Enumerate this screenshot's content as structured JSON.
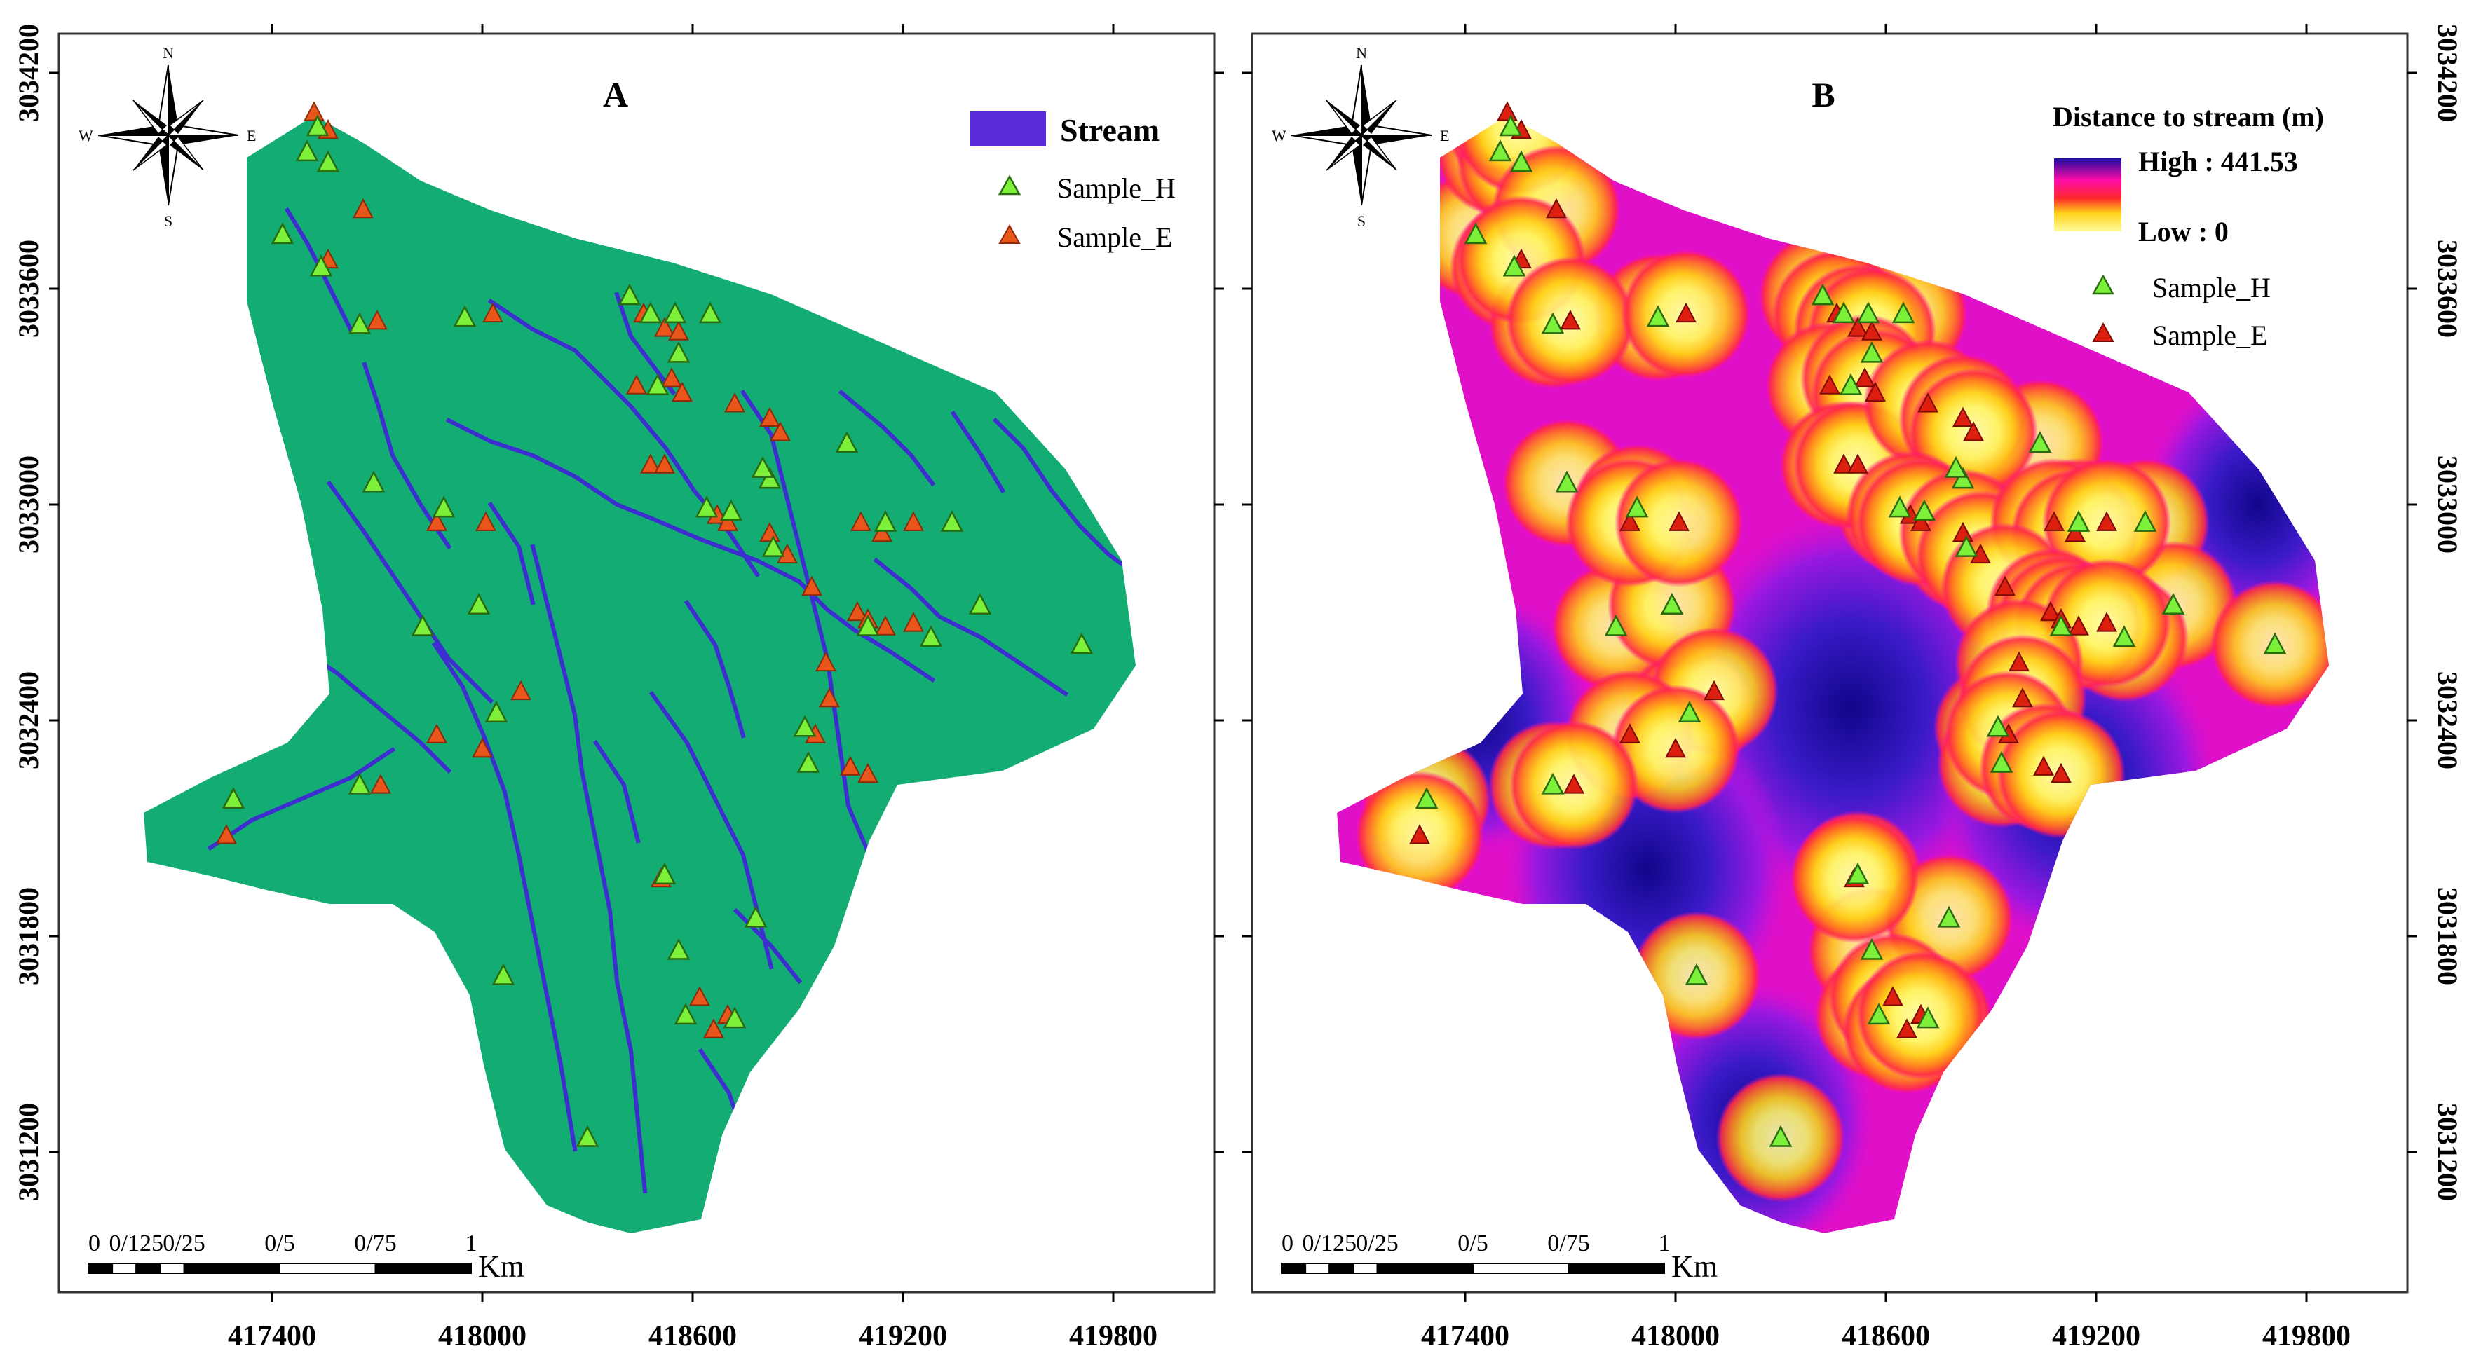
{
  "panels": [
    {
      "id": "A",
      "label": "A",
      "x_ticks": [
        "417400",
        "418000",
        "418600",
        "419200",
        "419800"
      ],
      "y_ticks": [
        "3034200",
        "3033600",
        "3033000",
        "3032400",
        "3031800",
        "3031200"
      ],
      "legend": [
        {
          "kind": "stream",
          "label": "Stream"
        },
        {
          "kind": "sample_h",
          "label": "Sample_H"
        },
        {
          "kind": "sample_e",
          "label": "Sample_E"
        }
      ],
      "scale_bar": {
        "ticks": [
          "0",
          "0/125",
          "0/25",
          "0/5",
          "0/75",
          "1"
        ],
        "unit": "Km"
      },
      "north_arrow": {
        "n": "N",
        "s": "S",
        "e": "E",
        "w": "W"
      }
    },
    {
      "id": "B",
      "label": "B",
      "x_ticks": [
        "417400",
        "418000",
        "418600",
        "419200",
        "419800"
      ],
      "y_ticks": [
        "3034200",
        "3033600",
        "3033000",
        "3032400",
        "3031800",
        "3031200"
      ],
      "legend_title": "Distance to stream (m)",
      "legend_high": "High : 441.53",
      "legend_low": "Low : 0",
      "legend": [
        {
          "kind": "sample_h",
          "label": "Sample_H"
        },
        {
          "kind": "sample_e",
          "label": "Sample_E"
        }
      ],
      "scale_bar": {
        "ticks": [
          "0",
          "0/125",
          "0/25",
          "0/5",
          "0/75",
          "1"
        ],
        "unit": "Km"
      },
      "north_arrow": {
        "n": "N",
        "s": "S",
        "e": "E",
        "w": "W"
      }
    }
  ],
  "colors": {
    "catchment": "#13ad74",
    "stream": "#3d2fcf",
    "stream_legend": "#5a2bd8",
    "sample_h": "#7df03a",
    "sample_e_a": "#e8561b",
    "sample_e_b": "#dd1f10",
    "dist_low": "#fffa9a",
    "dist_mid1": "#ffd21a",
    "dist_mid2": "#ff2a2a",
    "dist_mid3": "#ff0aa8",
    "dist_high": "#1a0ba0"
  },
  "sample_points": {
    "sample_h": [
      {
        "x": 417430,
        "y": 3033750
      },
      {
        "x": 417500,
        "y": 3033980
      },
      {
        "x": 417530,
        "y": 3034050
      },
      {
        "x": 417560,
        "y": 3033950
      },
      {
        "x": 417540,
        "y": 3033660
      },
      {
        "x": 417650,
        "y": 3033500
      },
      {
        "x": 417690,
        "y": 3033060
      },
      {
        "x": 417890,
        "y": 3032990
      },
      {
        "x": 417950,
        "y": 3033520
      },
      {
        "x": 418420,
        "y": 3033580
      },
      {
        "x": 418480,
        "y": 3033530
      },
      {
        "x": 418500,
        "y": 3033330
      },
      {
        "x": 418560,
        "y": 3033420
      },
      {
        "x": 418550,
        "y": 3033530
      },
      {
        "x": 418650,
        "y": 3033530
      },
      {
        "x": 418640,
        "y": 3032990
      },
      {
        "x": 418710,
        "y": 3032980
      },
      {
        "x": 418820,
        "y": 3033070
      },
      {
        "x": 418800,
        "y": 3033100
      },
      {
        "x": 418830,
        "y": 3032880
      },
      {
        "x": 419040,
        "y": 3033170
      },
      {
        "x": 419150,
        "y": 3032950
      },
      {
        "x": 419340,
        "y": 3032950
      },
      {
        "x": 419420,
        "y": 3032720
      },
      {
        "x": 419710,
        "y": 3032610
      },
      {
        "x": 419100,
        "y": 3032660
      },
      {
        "x": 419280,
        "y": 3032630
      },
      {
        "x": 418920,
        "y": 3032380
      },
      {
        "x": 418930,
        "y": 3032280
      },
      {
        "x": 417830,
        "y": 3032660
      },
      {
        "x": 418040,
        "y": 3032420
      },
      {
        "x": 417650,
        "y": 3032220
      },
      {
        "x": 417290,
        "y": 3032180
      },
      {
        "x": 418300,
        "y": 3031240
      },
      {
        "x": 418520,
        "y": 3031970
      },
      {
        "x": 418560,
        "y": 3031760
      },
      {
        "x": 418060,
        "y": 3031690
      },
      {
        "x": 418580,
        "y": 3031580
      },
      {
        "x": 418720,
        "y": 3031570
      },
      {
        "x": 418780,
        "y": 3031850
      },
      {
        "x": 417990,
        "y": 3032720
      }
    ],
    "sample_e": [
      {
        "x": 417520,
        "y": 3034090
      },
      {
        "x": 417560,
        "y": 3034040
      },
      {
        "x": 417660,
        "y": 3033820
      },
      {
        "x": 417560,
        "y": 3033680
      },
      {
        "x": 417700,
        "y": 3033510
      },
      {
        "x": 418030,
        "y": 3033530
      },
      {
        "x": 418460,
        "y": 3033530
      },
      {
        "x": 418520,
        "y": 3033490
      },
      {
        "x": 418560,
        "y": 3033480
      },
      {
        "x": 418440,
        "y": 3033330
      },
      {
        "x": 418540,
        "y": 3033350
      },
      {
        "x": 418570,
        "y": 3033310
      },
      {
        "x": 418480,
        "y": 3033110
      },
      {
        "x": 418520,
        "y": 3033110
      },
      {
        "x": 418720,
        "y": 3033280
      },
      {
        "x": 418820,
        "y": 3033240
      },
      {
        "x": 418850,
        "y": 3033200
      },
      {
        "x": 418670,
        "y": 3032970
      },
      {
        "x": 418700,
        "y": 3032950
      },
      {
        "x": 418820,
        "y": 3032920
      },
      {
        "x": 418870,
        "y": 3032860
      },
      {
        "x": 419080,
        "y": 3032950
      },
      {
        "x": 419140,
        "y": 3032920
      },
      {
        "x": 419230,
        "y": 3032950
      },
      {
        "x": 418940,
        "y": 3032770
      },
      {
        "x": 419070,
        "y": 3032700
      },
      {
        "x": 419100,
        "y": 3032680
      },
      {
        "x": 419150,
        "y": 3032660
      },
      {
        "x": 419230,
        "y": 3032670
      },
      {
        "x": 418980,
        "y": 3032560
      },
      {
        "x": 418990,
        "y": 3032460
      },
      {
        "x": 418950,
        "y": 3032360
      },
      {
        "x": 419050,
        "y": 3032270
      },
      {
        "x": 419100,
        "y": 3032250
      },
      {
        "x": 418110,
        "y": 3032480
      },
      {
        "x": 417870,
        "y": 3032950
      },
      {
        "x": 418010,
        "y": 3032950
      },
      {
        "x": 417870,
        "y": 3032360
      },
      {
        "x": 418000,
        "y": 3032320
      },
      {
        "x": 417710,
        "y": 3032220
      },
      {
        "x": 417270,
        "y": 3032080
      },
      {
        "x": 418510,
        "y": 3031960
      },
      {
        "x": 418620,
        "y": 3031630
      },
      {
        "x": 418660,
        "y": 3031540
      },
      {
        "x": 418700,
        "y": 3031580
      }
    ]
  }
}
